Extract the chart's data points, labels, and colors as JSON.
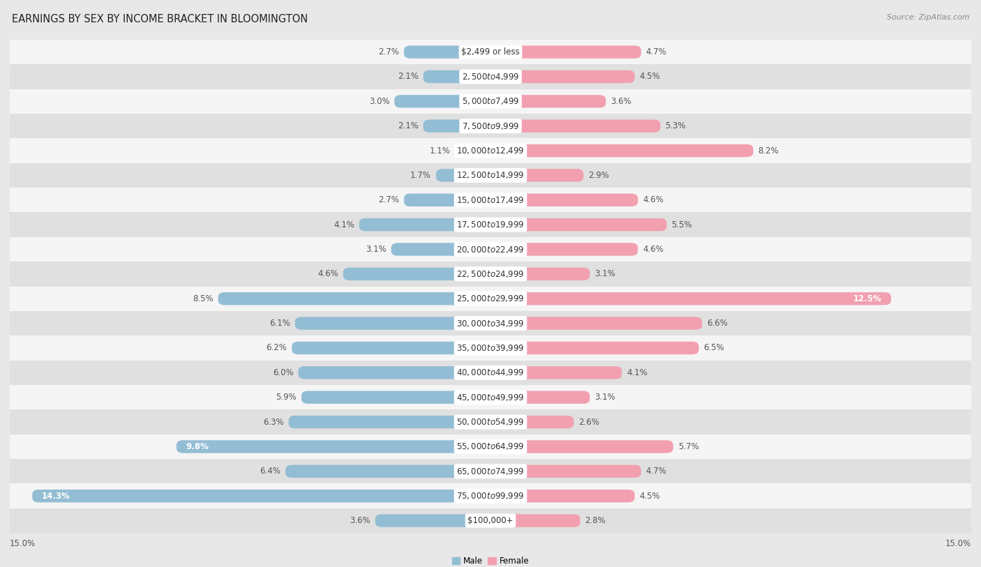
{
  "title": "EARNINGS BY SEX BY INCOME BRACKET IN BLOOMINGTON",
  "source": "Source: ZipAtlas.com",
  "categories": [
    "$2,499 or less",
    "$2,500 to $4,999",
    "$5,000 to $7,499",
    "$7,500 to $9,999",
    "$10,000 to $12,499",
    "$12,500 to $14,999",
    "$15,000 to $17,499",
    "$17,500 to $19,999",
    "$20,000 to $22,499",
    "$22,500 to $24,999",
    "$25,000 to $29,999",
    "$30,000 to $34,999",
    "$35,000 to $39,999",
    "$40,000 to $44,999",
    "$45,000 to $49,999",
    "$50,000 to $54,999",
    "$55,000 to $64,999",
    "$65,000 to $74,999",
    "$75,000 to $99,999",
    "$100,000+"
  ],
  "male": [
    2.7,
    2.1,
    3.0,
    2.1,
    1.1,
    1.7,
    2.7,
    4.1,
    3.1,
    4.6,
    8.5,
    6.1,
    6.2,
    6.0,
    5.9,
    6.3,
    9.8,
    6.4,
    14.3,
    3.6
  ],
  "female": [
    4.7,
    4.5,
    3.6,
    5.3,
    8.2,
    2.9,
    4.6,
    5.5,
    4.6,
    3.1,
    12.5,
    6.6,
    6.5,
    4.1,
    3.1,
    2.6,
    5.7,
    4.7,
    4.5,
    2.8
  ],
  "male_color": "#93bdd4",
  "female_color": "#f2a0b0",
  "male_label": "Male",
  "female_label": "Female",
  "xlim": 15.0,
  "bg_color": "#e8e8e8",
  "row_white": "#f5f5f5",
  "row_gray": "#e0e0e0",
  "title_fontsize": 10.5,
  "label_fontsize": 8.5,
  "source_fontsize": 8,
  "cat_fontsize": 8.5,
  "axis_label_fontsize": 8.5
}
